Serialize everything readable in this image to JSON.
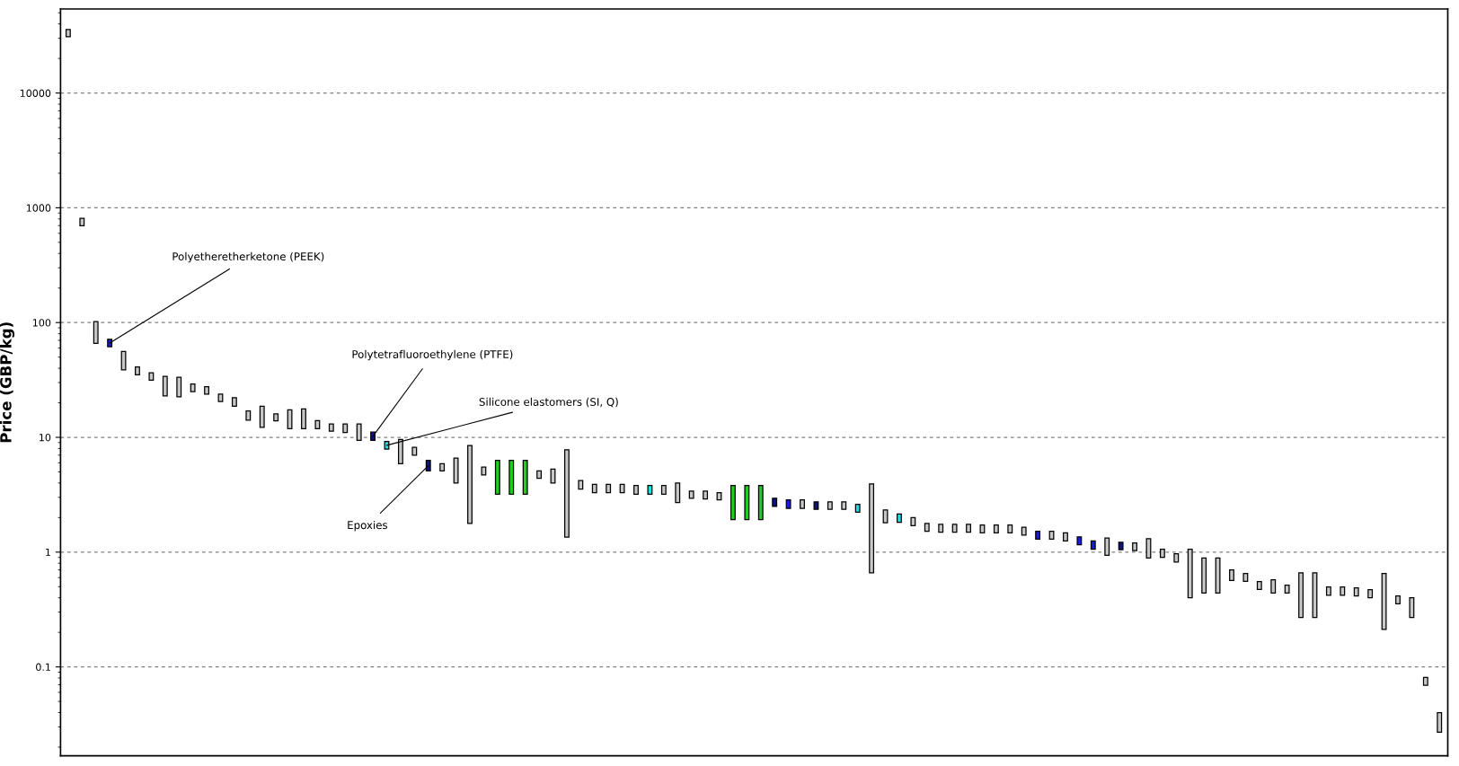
{
  "chart_data": {
    "type": "bar",
    "ylabel": "Price (GBP/kg)",
    "categories": [
      null,
      null,
      null,
      null,
      null,
      null,
      null,
      null,
      null,
      null,
      null,
      null,
      null,
      null,
      null,
      null,
      null,
      null,
      null,
      null,
      null,
      null,
      null,
      null,
      null,
      null,
      null,
      null,
      null,
      null,
      null,
      null,
      null,
      null,
      null,
      null,
      null,
      null,
      null,
      null,
      null,
      null,
      null,
      null,
      null,
      null,
      null,
      null,
      null,
      null,
      null,
      null,
      null,
      null,
      null,
      null,
      null,
      null,
      null,
      null,
      null,
      null,
      null,
      null,
      null,
      null,
      null,
      null,
      null,
      null,
      null,
      null,
      null,
      null,
      null,
      null,
      null,
      null,
      null,
      null,
      null,
      null,
      null,
      null,
      null,
      null,
      null,
      null,
      null,
      null,
      null,
      null,
      null,
      null,
      null,
      null,
      null,
      null,
      null,
      null
    ],
    "base": [
      30900,
      699,
      66,
      61.6,
      38.8,
      35,
      31.5,
      23,
      22.6,
      25,
      23.8,
      20.5,
      18.7,
      14.1,
      12.2,
      13.9,
      11.9,
      11.9,
      11.9,
      11.3,
      11,
      9.4,
      9.4,
      7.9,
      5.9,
      7.0,
      5.1,
      5.1,
      4.0,
      1.78,
      4.7,
      3.2,
      3.2,
      3.2,
      4.4,
      4.0,
      1.35,
      3.55,
      3.3,
      3.3,
      3.3,
      3.2,
      3.2,
      3.2,
      2.7,
      2.95,
      2.9,
      2.85,
      1.92,
      1.92,
      1.92,
      2.5,
      2.4,
      2.4,
      2.36,
      2.36,
      2.36,
      2.23,
      0.66,
      1.8,
      1.82,
      1.7,
      1.52,
      1.49,
      1.49,
      1.49,
      1.47,
      1.47,
      1.47,
      1.41,
      1.3,
      1.3,
      1.25,
      1.16,
      1.06,
      0.94,
      1.05,
      1.03,
      0.89,
      0.9,
      0.82,
      0.4,
      0.44,
      0.44,
      0.566,
      0.556,
      0.474,
      0.44,
      0.44,
      0.27,
      0.27,
      0.42,
      0.42,
      0.416,
      0.4,
      0.212,
      0.354,
      0.27,
      0.069,
      0.027
    ],
    "values": [
      4900,
      112,
      36,
      9.9,
      17.2,
      6,
      5.1,
      11,
      10.7,
      4.2,
      3.8,
      3.3,
      3.5,
      2.9,
      6.5,
      2.1,
      5.5,
      5.8,
      2.1,
      1.8,
      2.1,
      3.7,
      1.7,
      1.3,
      3.7,
      1.2,
      1.2,
      0.8,
      2.6,
      6.72,
      0.8,
      3.1,
      3.1,
      3.1,
      0.7,
      1.3,
      6.45,
      0.65,
      0.6,
      0.6,
      0.6,
      0.6,
      0.6,
      0.6,
      1.3,
      0.45,
      0.5,
      0.45,
      1.88,
      1.88,
      1.88,
      0.45,
      0.45,
      0.45,
      0.38,
      0.38,
      0.38,
      0.38,
      3.27,
      0.53,
      0.33,
      0.3,
      0.26,
      0.26,
      0.26,
      0.26,
      0.25,
      0.25,
      0.25,
      0.24,
      0.22,
      0.22,
      0.22,
      0.2,
      0.19,
      0.39,
      0.17,
      0.17,
      0.42,
      0.16,
      0.15,
      0.66,
      0.45,
      0.45,
      0.134,
      0.094,
      0.081,
      0.135,
      0.076,
      0.39,
      0.39,
      0.077,
      0.077,
      0.072,
      0.07,
      0.438,
      0.062,
      0.13,
      0.012,
      0.013
    ],
    "colors": [
      "#c8c8c8",
      "#c8c8c8",
      "#c8c8c8",
      "#1c1cd0",
      "#c8c8c8",
      "#c8c8c8",
      "#c8c8c8",
      "#c8c8c8",
      "#c8c8c8",
      "#c8c8c8",
      "#c8c8c8",
      "#c8c8c8",
      "#c8c8c8",
      "#c8c8c8",
      "#c8c8c8",
      "#c8c8c8",
      "#c8c8c8",
      "#c8c8c8",
      "#c8c8c8",
      "#c8c8c8",
      "#c8c8c8",
      "#c8c8c8",
      "#10108a",
      "#20e0e0",
      "#c8c8c8",
      "#c8c8c8",
      "#10108a",
      "#c8c8c8",
      "#c8c8c8",
      "#c8c8c8",
      "#c8c8c8",
      "#20d020",
      "#20d020",
      "#20d020",
      "#c8c8c8",
      "#c8c8c8",
      "#c8c8c8",
      "#c8c8c8",
      "#c8c8c8",
      "#c8c8c8",
      "#c8c8c8",
      "#c8c8c8",
      "#20e0e0",
      "#c8c8c8",
      "#c8c8c8",
      "#c8c8c8",
      "#c8c8c8",
      "#c8c8c8",
      "#20d020",
      "#20d020",
      "#20d020",
      "#10108a",
      "#1c1cd0",
      "#c8c8c8",
      "#10108a",
      "#c8c8c8",
      "#c8c8c8",
      "#20e0e0",
      "#c8c8c8",
      "#c8c8c8",
      "#20e0e0",
      "#c8c8c8",
      "#c8c8c8",
      "#c8c8c8",
      "#c8c8c8",
      "#c8c8c8",
      "#c8c8c8",
      "#c8c8c8",
      "#c8c8c8",
      "#c8c8c8",
      "#1c1cd0",
      "#c8c8c8",
      "#c8c8c8",
      "#1c1cd0",
      "#1c1cd0",
      "#c8c8c8",
      "#10108a",
      "#c8c8c8",
      "#c8c8c8",
      "#c8c8c8",
      "#c8c8c8",
      "#c8c8c8",
      "#c8c8c8",
      "#c8c8c8",
      "#c8c8c8",
      "#c8c8c8",
      "#c8c8c8",
      "#c8c8c8",
      "#c8c8c8",
      "#c8c8c8",
      "#c8c8c8",
      "#c8c8c8",
      "#c8c8c8",
      "#c8c8c8",
      "#c8c8c8",
      "#c8c8c8",
      "#c8c8c8",
      "#c8c8c8",
      "#c8c8c8",
      "#c8c8c8"
    ],
    "log": "y",
    "ylim": [
      0.0168,
      54000
    ],
    "yticks": [
      0.1,
      1,
      10,
      100,
      1000,
      10000
    ],
    "grid": "y",
    "tick_labels": "y",
    "annotations": [
      "Polyetheretherketone (PEEK)",
      "Polytetrafluoroethylene (PTFE)",
      "Silicone elastomers (SI, Q)",
      "Epoxies"
    ]
  }
}
